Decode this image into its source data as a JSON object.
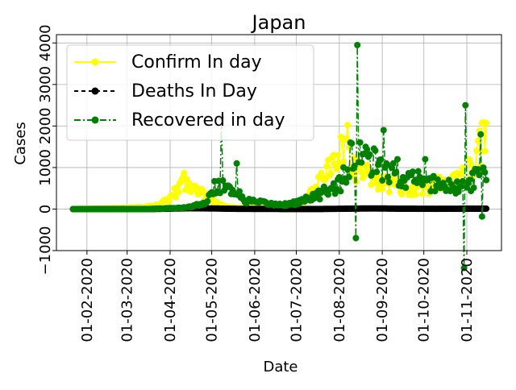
{
  "chart_data": {
    "type": "line",
    "title": "Japan",
    "xlabel": "Date",
    "ylabel": "Cases",
    "grid": true,
    "legend_position": "upper-left",
    "x_start": "2020-01-22",
    "x_end": "2020-11-15",
    "xlim": [
      "2020-01-10",
      "2020-11-26"
    ],
    "ylim": [
      -1000,
      4200
    ],
    "x_ticks": [
      {
        "date": "2020-02-01",
        "label": "01-02-2020"
      },
      {
        "date": "2020-03-01",
        "label": "01-03-2020"
      },
      {
        "date": "2020-04-01",
        "label": "01-04-2020"
      },
      {
        "date": "2020-05-01",
        "label": "01-05-2020"
      },
      {
        "date": "2020-06-01",
        "label": "01-06-2020"
      },
      {
        "date": "2020-07-01",
        "label": "01-07-2020"
      },
      {
        "date": "2020-08-01",
        "label": "01-08-2020"
      },
      {
        "date": "2020-09-01",
        "label": "01-09-2020"
      },
      {
        "date": "2020-10-01",
        "label": "01-10-2020"
      },
      {
        "date": "2020-11-01",
        "label": "01-11-2020"
      }
    ],
    "y_ticks": [
      {
        "value": -1000,
        "label": "−1000"
      },
      {
        "value": 0,
        "label": "0"
      },
      {
        "value": 1000,
        "label": "1000"
      },
      {
        "value": 2000,
        "label": "2000"
      },
      {
        "value": 3000,
        "label": "3000"
      },
      {
        "value": 4000,
        "label": "4000"
      }
    ],
    "series": [
      {
        "name": "Confirm In day",
        "color": "#ffff00",
        "linestyle": "solid",
        "keypoints": [
          [
            "2020-01-22",
            0
          ],
          [
            "2020-02-10",
            10
          ],
          [
            "2020-02-25",
            20
          ],
          [
            "2020-03-10",
            40
          ],
          [
            "2020-03-25",
            100
          ],
          [
            "2020-04-01",
            250
          ],
          [
            "2020-04-06",
            450
          ],
          [
            "2020-04-11",
            700
          ],
          [
            "2020-04-14",
            600
          ],
          [
            "2020-04-18",
            550
          ],
          [
            "2020-04-25",
            350
          ],
          [
            "2020-05-01",
            250
          ],
          [
            "2020-05-08",
            90
          ],
          [
            "2020-05-15",
            40
          ],
          [
            "2020-05-25",
            30
          ],
          [
            "2020-06-05",
            40
          ],
          [
            "2020-06-20",
            60
          ],
          [
            "2020-07-01",
            120
          ],
          [
            "2020-07-10",
            300
          ],
          [
            "2020-07-20",
            750
          ],
          [
            "2020-07-27",
            1000
          ],
          [
            "2020-08-01",
            1400
          ],
          [
            "2020-08-03",
            1800
          ],
          [
            "2020-08-07",
            1500
          ],
          [
            "2020-08-12",
            1000
          ],
          [
            "2020-08-20",
            900
          ],
          [
            "2020-08-30",
            650
          ],
          [
            "2020-09-10",
            550
          ],
          [
            "2020-09-25",
            500
          ],
          [
            "2020-10-05",
            550
          ],
          [
            "2020-10-15",
            600
          ],
          [
            "2020-10-25",
            700
          ],
          [
            "2020-11-01",
            800
          ],
          [
            "2020-11-06",
            1100
          ],
          [
            "2020-11-10",
            1400
          ],
          [
            "2020-11-13",
            1700
          ],
          [
            "2020-11-15",
            1700
          ]
        ]
      },
      {
        "name": "Deaths In Day",
        "color": "#000000",
        "linestyle": "dashed",
        "keypoints": [
          [
            "2020-01-22",
            0
          ],
          [
            "2020-03-20",
            1
          ],
          [
            "2020-04-15",
            20
          ],
          [
            "2020-05-01",
            15
          ],
          [
            "2020-05-20",
            5
          ],
          [
            "2020-06-20",
            2
          ],
          [
            "2020-07-20",
            2
          ],
          [
            "2020-08-10",
            10
          ],
          [
            "2020-08-25",
            15
          ],
          [
            "2020-09-10",
            10
          ],
          [
            "2020-10-10",
            6
          ],
          [
            "2020-11-15",
            10
          ]
        ]
      },
      {
        "name": "Recovered in day",
        "color": "#008000",
        "linestyle": "dashdot",
        "keypoints": [
          [
            "2020-01-22",
            0
          ],
          [
            "2020-03-15",
            0
          ],
          [
            "2020-04-10",
            30
          ],
          [
            "2020-04-25",
            120
          ],
          [
            "2020-05-05",
            600
          ],
          [
            "2020-05-15",
            500
          ],
          [
            "2020-05-25",
            200
          ],
          [
            "2020-06-05",
            150
          ],
          [
            "2020-06-20",
            100
          ],
          [
            "2020-07-01",
            150
          ],
          [
            "2020-07-15",
            300
          ],
          [
            "2020-07-25",
            500
          ],
          [
            "2020-08-01",
            600
          ],
          [
            "2020-08-05",
            800
          ],
          [
            "2020-08-10",
            1200
          ],
          [
            "2020-08-20",
            1200
          ],
          [
            "2020-08-30",
            1000
          ],
          [
            "2020-09-10",
            800
          ],
          [
            "2020-09-20",
            750
          ],
          [
            "2020-10-01",
            650
          ],
          [
            "2020-10-15",
            600
          ],
          [
            "2020-10-25",
            500
          ],
          [
            "2020-11-05",
            650
          ],
          [
            "2020-11-15",
            1000
          ]
        ],
        "spikes": [
          [
            "2020-05-08",
            2200
          ],
          [
            "2020-05-19",
            1100
          ],
          [
            "2020-08-09",
            1600
          ],
          [
            "2020-08-13",
            -700
          ],
          [
            "2020-08-14",
            3950
          ],
          [
            "2020-08-20",
            1500
          ],
          [
            "2020-09-02",
            1900
          ],
          [
            "2020-09-12",
            1200
          ],
          [
            "2020-10-02",
            1200
          ],
          [
            "2020-10-30",
            -1420
          ],
          [
            "2020-10-31",
            2500
          ],
          [
            "2020-11-11",
            1800
          ],
          [
            "2020-11-12",
            -180
          ]
        ]
      }
    ]
  }
}
